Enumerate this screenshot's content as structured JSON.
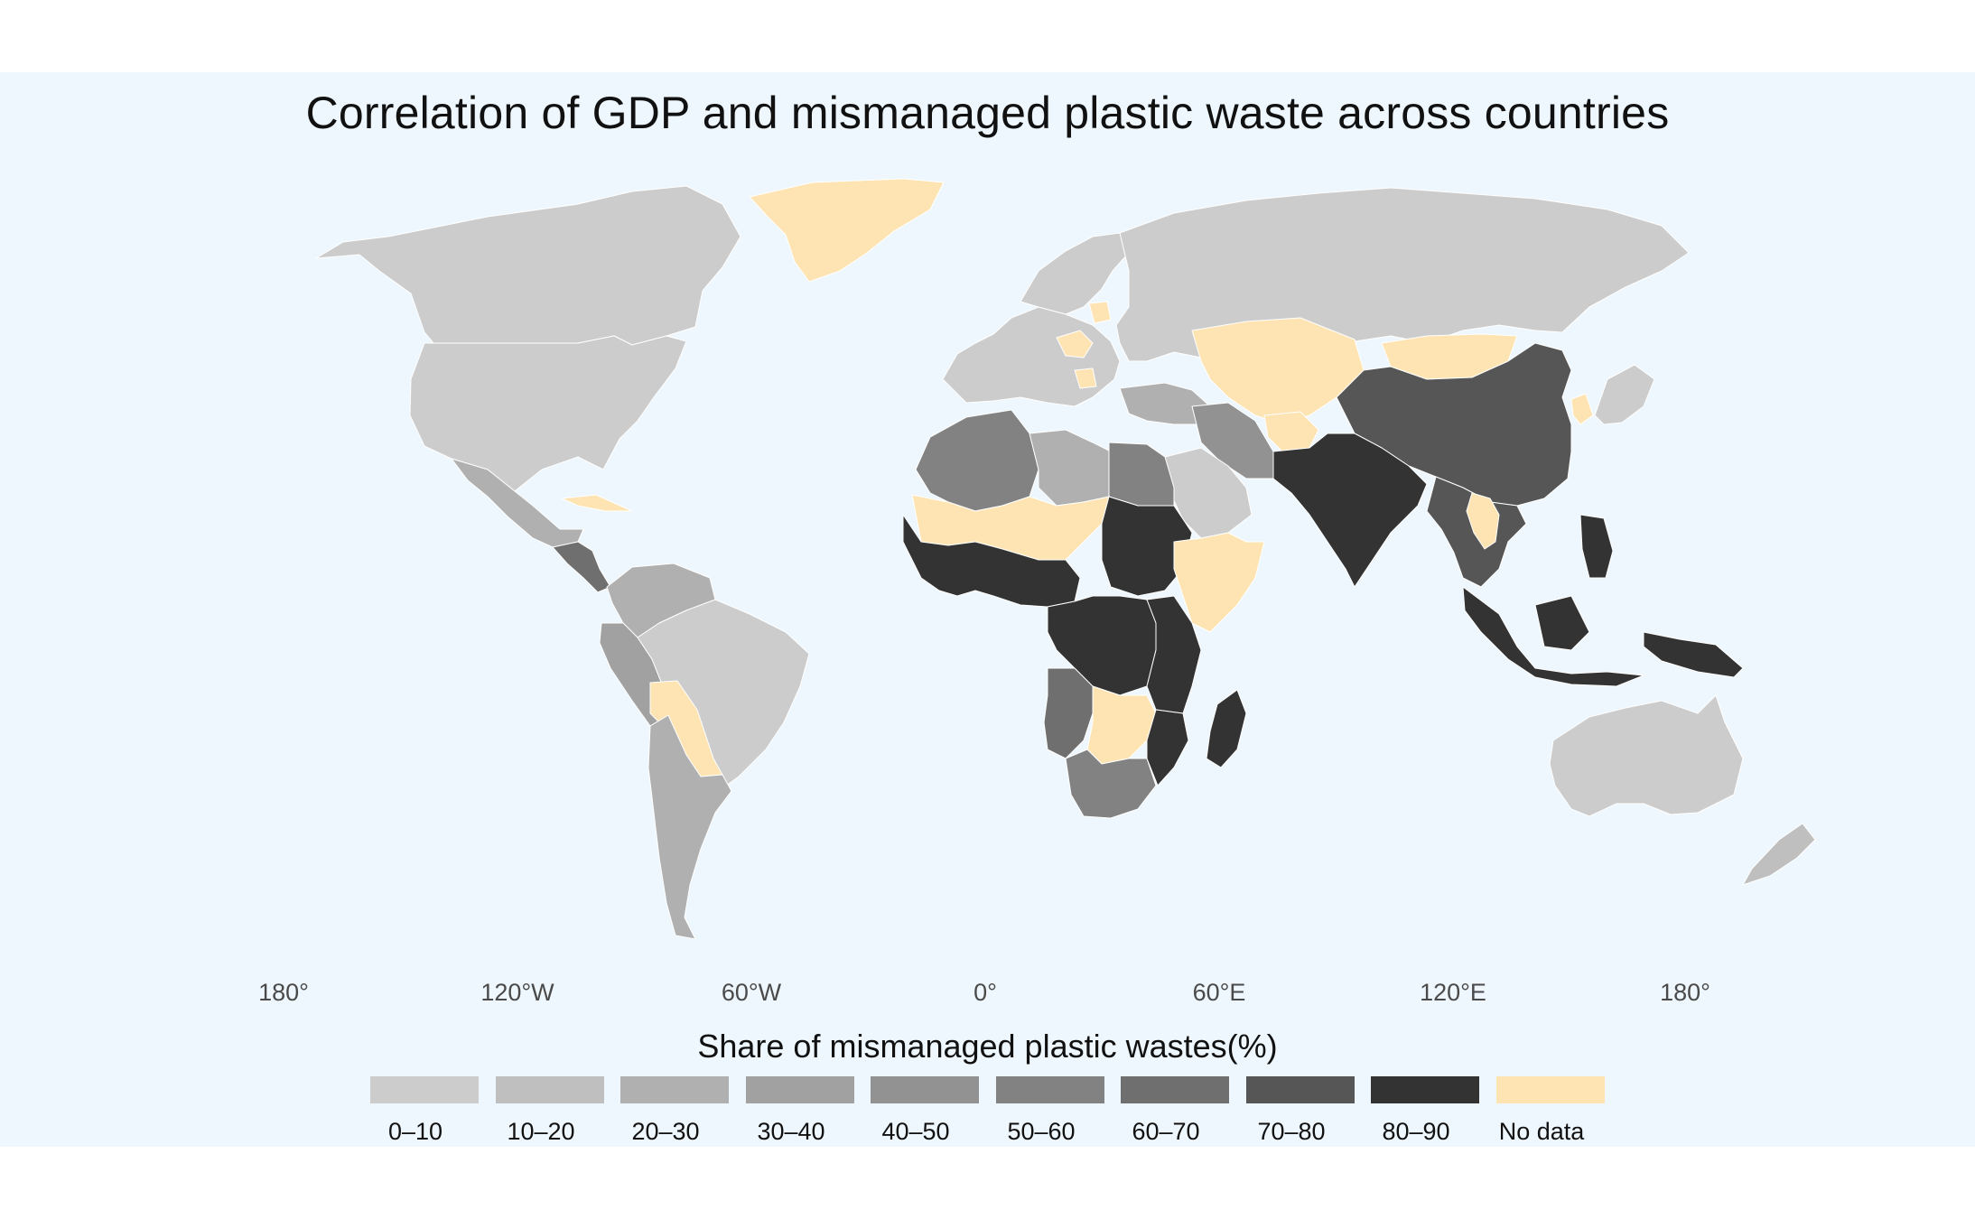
{
  "title": "Correlation of GDP and mismanaged plastic waste across countries",
  "legend": {
    "title": "Share of mismanaged plastic wastes(%)",
    "items": [
      {
        "label": "0–10",
        "color": "#cccccc"
      },
      {
        "label": "10–20",
        "color": "#bfbfbf"
      },
      {
        "label": "20–30",
        "color": "#b0b0b0"
      },
      {
        "label": "30–40",
        "color": "#a1a1a1"
      },
      {
        "label": "40–50",
        "color": "#929292"
      },
      {
        "label": "50–60",
        "color": "#828282"
      },
      {
        "label": "60–70",
        "color": "#6f6f6f"
      },
      {
        "label": "70–80",
        "color": "#565656"
      },
      {
        "label": "80–90",
        "color": "#333333"
      },
      {
        "label": "No data",
        "color": "#fde4b2"
      }
    ]
  },
  "axis": {
    "longitude_labels": [
      "180°",
      "120°W",
      "60°W",
      "0°",
      "60°E",
      "120°E",
      "180°"
    ]
  },
  "colors": {
    "background": "#eef7fd",
    "border": "#ffffff"
  },
  "regions": [
    {
      "name": "Canada",
      "class": "0–10"
    },
    {
      "name": "United States",
      "class": "0–10"
    },
    {
      "name": "Greenland",
      "class": "No data"
    },
    {
      "name": "Mexico",
      "class": "20–30"
    },
    {
      "name": "Central America",
      "class": "60–70"
    },
    {
      "name": "Cuba",
      "class": "No data"
    },
    {
      "name": "Colombia / Venezuela",
      "class": "20–30"
    },
    {
      "name": "Peru / Ecuador",
      "class": "30–40"
    },
    {
      "name": "Brazil",
      "class": "0–10"
    },
    {
      "name": "Bolivia / Paraguay",
      "class": "No data"
    },
    {
      "name": "Argentina / Chile",
      "class": "20–30"
    },
    {
      "name": "Western Europe",
      "class": "0–10"
    },
    {
      "name": "Scandinavia",
      "class": "0–10"
    },
    {
      "name": "Eastern Europe (partial)",
      "class": "No data"
    },
    {
      "name": "Russia",
      "class": "0–10"
    },
    {
      "name": "Kazakhstan / Central Asia",
      "class": "No data"
    },
    {
      "name": "Mongolia",
      "class": "No data"
    },
    {
      "name": "China",
      "class": "70–80"
    },
    {
      "name": "Japan",
      "class": "0–10"
    },
    {
      "name": "Korea",
      "class": "No data"
    },
    {
      "name": "Turkey / Middle East",
      "class": "20–30"
    },
    {
      "name": "Iran",
      "class": "40–50"
    },
    {
      "name": "Saudi Arabia",
      "class": "0–10"
    },
    {
      "name": "Afghanistan / Tajikistan",
      "class": "No data"
    },
    {
      "name": "Pakistan / India",
      "class": "80–90"
    },
    {
      "name": "Southeast Asia",
      "class": "70–80"
    },
    {
      "name": "Thailand",
      "class": "No data"
    },
    {
      "name": "Indonesia / Philippines",
      "class": "80–90"
    },
    {
      "name": "Papua New Guinea",
      "class": "80–90"
    },
    {
      "name": "Australia",
      "class": "0–10"
    },
    {
      "name": "New Zealand",
      "class": "10–20"
    },
    {
      "name": "Morocco / Algeria",
      "class": "50–60"
    },
    {
      "name": "Libya",
      "class": "20–30"
    },
    {
      "name": "Egypt",
      "class": "50–60"
    },
    {
      "name": "Sahel",
      "class": "No data"
    },
    {
      "name": "West Africa",
      "class": "80–90"
    },
    {
      "name": "Sudan",
      "class": "80–90"
    },
    {
      "name": "Ethiopia / Somalia",
      "class": "No data"
    },
    {
      "name": "Central Africa",
      "class": "80–90"
    },
    {
      "name": "East Africa",
      "class": "80–90"
    },
    {
      "name": "Angola",
      "class": "60–70"
    },
    {
      "name": "Southern Africa (partial)",
      "class": "No data"
    },
    {
      "name": "South Africa",
      "class": "50–60"
    },
    {
      "name": "Mozambique",
      "class": "80–90"
    },
    {
      "name": "Madagascar",
      "class": "80–90"
    }
  ]
}
